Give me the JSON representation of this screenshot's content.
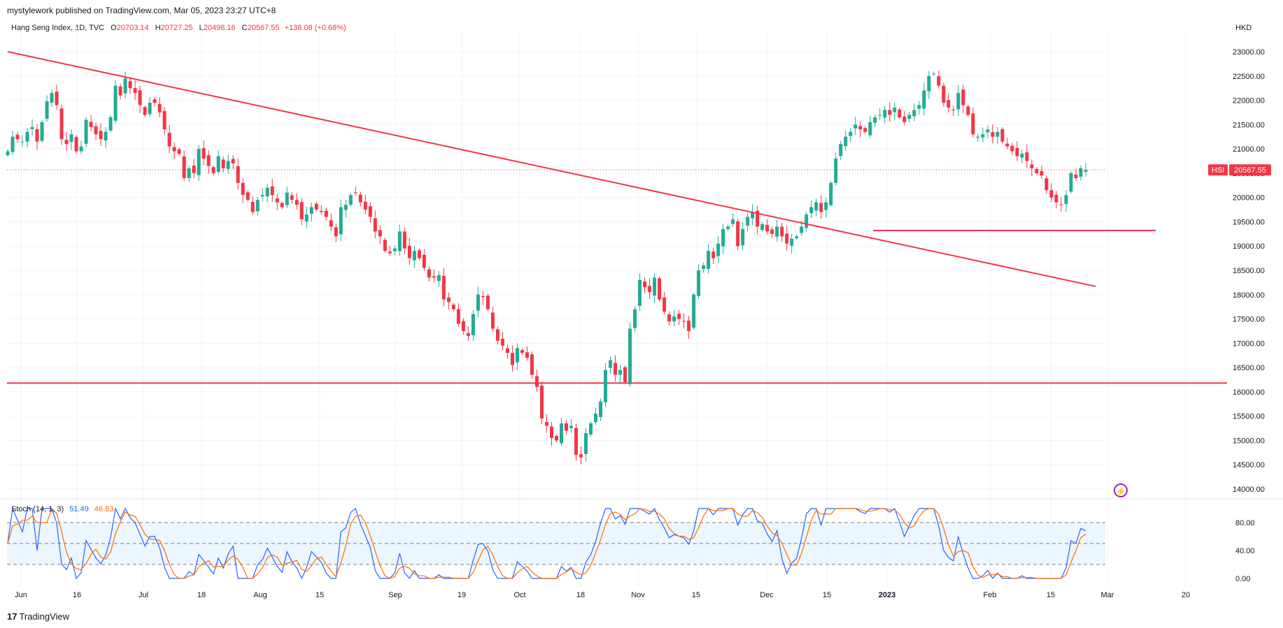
{
  "header": {
    "published": "mystylework published on TradingView.com, Mar 05, 2023 23:27 UTC+8"
  },
  "legend": {
    "symbol": "Hang Seng Index, 1D, TVC",
    "open_label": "O",
    "open": "20703.14",
    "high_label": "H",
    "high": "20727.25",
    "low_label": "L",
    "low": "20498.16",
    "close_label": "C",
    "close": "20567.55",
    "change": "+138.08 (+0.68%)"
  },
  "currency": "HKD",
  "last_price": {
    "tag": "HSI",
    "value": "20567.55"
  },
  "stoch": {
    "name": "Stoch (14, 1, 3)",
    "k": "51.49",
    "d": "46.83",
    "levels": [
      80,
      50,
      20
    ],
    "axis": [
      "80.00",
      "40.00",
      "0.00"
    ]
  },
  "footer": {
    "logo_mark": "17",
    "brand": "TradingView"
  },
  "colors": {
    "up": "#22ab94",
    "down": "#f23645",
    "trendline": "#f23645",
    "k": "#2962ff",
    "d": "#ff6d00",
    "band": "#e3f2fd"
  },
  "chart_data": {
    "type": "candlestick",
    "title": "Hang Seng Index, 1D, TVC",
    "y_axis_labels": [
      "23000.00",
      "22500.00",
      "22000.00",
      "21500.00",
      "21000.00",
      "20500.00",
      "20000.00",
      "19500.00",
      "19000.00",
      "18500.00",
      "18000.00",
      "17500.00",
      "17000.00",
      "16500.00",
      "16000.00",
      "15500.00",
      "15000.00",
      "14500.00",
      "14000.00"
    ],
    "ylim": [
      14000,
      23000
    ],
    "x_axis_labels": [
      "Jun",
      "16",
      "Jul",
      "18",
      "Aug",
      "15",
      "Sep",
      "19",
      "Oct",
      "18",
      "Nov",
      "15",
      "Dec",
      "15",
      "2023",
      "Feb",
      "15",
      "Mar",
      "20"
    ],
    "horizontal_levels": [
      16180,
      19320
    ],
    "trendline": {
      "from": {
        "bar": 0,
        "price": 23000
      },
      "to": {
        "bar": 222,
        "price": 18170
      }
    },
    "close_series": [
      20950,
      21250,
      21200,
      21150,
      21350,
      21450,
      21150,
      21550,
      21980,
      22150,
      21900,
      21200,
      21100,
      21300,
      20950,
      21050,
      21600,
      21450,
      21300,
      21200,
      21350,
      21650,
      22300,
      22100,
      22450,
      22250,
      22150,
      21900,
      21700,
      21950,
      21950,
      21750,
      21400,
      21050,
      20950,
      20900,
      20400,
      20600,
      20500,
      21000,
      20800,
      20650,
      20500,
      20850,
      20600,
      20750,
      20700,
      20300,
      20050,
      19950,
      19700,
      19950,
      20050,
      20200,
      20050,
      19900,
      19800,
      20100,
      19950,
      19850,
      19550,
      19650,
      19800,
      19750,
      19700,
      19600,
      19400,
      19200,
      19800,
      19850,
      20050,
      20100,
      19900,
      19750,
      19600,
      19300,
      19200,
      18900,
      18850,
      18950,
      19300,
      18950,
      18750,
      18900,
      18750,
      18550,
      18350,
      18350,
      18400,
      17900,
      17850,
      17700,
      17400,
      17250,
      17150,
      17600,
      18000,
      17950,
      17700,
      17300,
      17050,
      16950,
      16800,
      16550,
      16900,
      16800,
      16700,
      16350,
      16100,
      15450,
      15300,
      15050,
      15000,
      15350,
      15200,
      15300,
      14700,
      14650,
      15150,
      15350,
      15550,
      15800,
      16450,
      16650,
      16350,
      16450,
      16200,
      17300,
      17700,
      18300,
      18150,
      18050,
      18350,
      17900,
      17650,
      17450,
      17550,
      17500,
      17450,
      17250,
      18000,
      18500,
      18600,
      18900,
      18750,
      19050,
      19350,
      19400,
      19550,
      19000,
      19350,
      19600,
      19700,
      19400,
      19450,
      19300,
      19250,
      19400,
      19200,
      19050,
      19150,
      19200,
      19400,
      19650,
      19800,
      19900,
      19700,
      19900,
      20300,
      20800,
      21100,
      21250,
      21350,
      21500,
      21400,
      21350,
      21550,
      21650,
      21700,
      21800,
      21700,
      21850,
      21650,
      21550,
      21700,
      21800,
      21900,
      22200,
      22500,
      22550,
      22300,
      21950,
      21850,
      21800,
      22150,
      21900,
      21700,
      21300,
      21250,
      21300,
      21400,
      21250,
      21350,
      21150,
      21050,
      20950,
      20850,
      20900,
      20750,
      20600,
      20500,
      20450,
      20150,
      20000,
      19900,
      19850,
      20050,
      20500,
      20400,
      20600,
      20567.55
    ]
  }
}
